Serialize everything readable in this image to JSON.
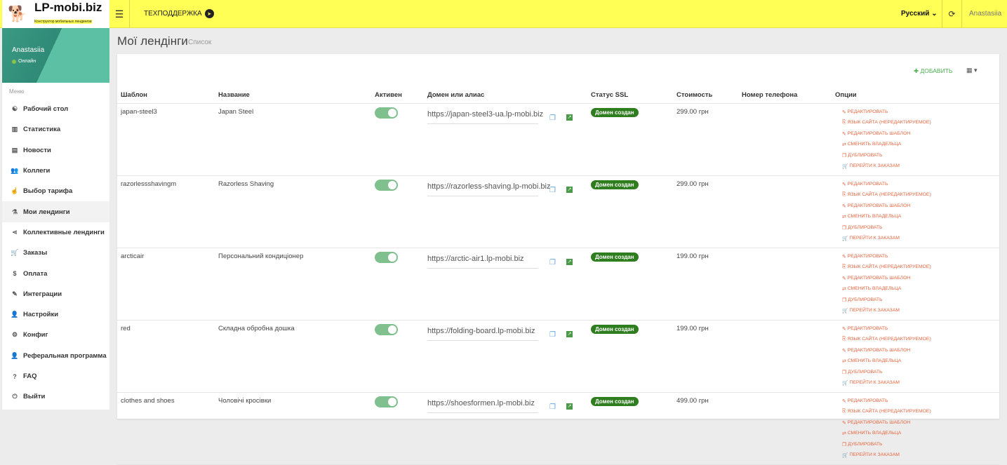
{
  "header": {
    "logo": "LP-mobi.biz",
    "logo_sub": "Конструктор мобильных лендингов",
    "support": "ТЕХПОДДЕРЖКА",
    "language": "Русский",
    "user": "Anastasiia"
  },
  "sidebar": {
    "user": "Anastasiia",
    "status": "Онлайн",
    "menu_heading": "Меню",
    "items": [
      {
        "label": "Рабочий стол",
        "icon": "☯"
      },
      {
        "label": "Статистика",
        "icon": "▥"
      },
      {
        "label": "Новости",
        "icon": "▤"
      },
      {
        "label": "Коллеги",
        "icon": "👥"
      },
      {
        "label": "Выбор тарифа",
        "icon": "☝"
      },
      {
        "label": "Мои лендинги",
        "icon": "⚗",
        "active": true
      },
      {
        "label": "Коллективные лендинги",
        "icon": "⋖"
      },
      {
        "label": "Заказы",
        "icon": "🛒"
      },
      {
        "label": "Оплата",
        "icon": "$"
      },
      {
        "label": "Интеграции",
        "icon": "✎"
      },
      {
        "label": "Настройки",
        "icon": "👤"
      },
      {
        "label": "Конфиг",
        "icon": "⚙"
      },
      {
        "label": "Реферальная программа",
        "icon": "👤"
      },
      {
        "label": "FAQ",
        "icon": "?"
      },
      {
        "label": "Выйти",
        "icon": "⏻"
      }
    ]
  },
  "page": {
    "title": "Мої лендінги",
    "subtitle": "Список",
    "add_label": "ДОБАВИТЬ"
  },
  "table": {
    "columns": [
      "Шаблон",
      "Название",
      "Активен",
      "Домен или алиас",
      "Статус SSL",
      "Стоимость",
      "Номер телефона",
      "Опции"
    ],
    "options": [
      "РЕДАКТИРОВАТЬ",
      "ЯЗЫК САЙТА (НЕРЕДАКТИРУЕМОЕ)",
      "РЕДАКТИРОВАТЬ ШАБЛОН",
      "СМЕНИТЬ ВЛАДЕЛЬЦА",
      "ДУБЛИРОВАТЬ",
      "ПЕРЕЙТИ К ЗАКАЗАМ"
    ],
    "option_icons": [
      "✎",
      "⎘",
      "✎",
      "⇄",
      "❐",
      "🛒"
    ],
    "rows": [
      {
        "template": "japan-steel3",
        "name": "Japan Steel",
        "active": true,
        "domain": "https://japan-steel3-ua.lp-mobi.biz",
        "ssl": "Домен создан",
        "price": "299.00 грн",
        "phone": ""
      },
      {
        "template": "razorlessshavingm",
        "name": "Razorless Shaving",
        "active": true,
        "domain": "https://razorless-shaving.lp-mobi.biz",
        "ssl": "Домен создан",
        "price": "299.00 грн",
        "phone": ""
      },
      {
        "template": "arcticair",
        "name": "Персональний кондиціонер",
        "active": true,
        "domain": "https://arctic-air1.lp-mobi.biz",
        "ssl": "Домен создан",
        "price": "199.00 грн",
        "phone": ""
      },
      {
        "template": "red",
        "name": "Складна обробна дошка",
        "active": true,
        "domain": "https://folding-board.lp-mobi.biz",
        "ssl": "Домен создан",
        "price": "199.00 грн",
        "phone": ""
      },
      {
        "template": "clothes and shoes",
        "name": "Чоловічі кросівки",
        "active": true,
        "domain": "https://shoesformen.lp-mobi.biz",
        "ssl": "Домен создан",
        "price": "499.00 грн",
        "phone": ""
      }
    ]
  }
}
